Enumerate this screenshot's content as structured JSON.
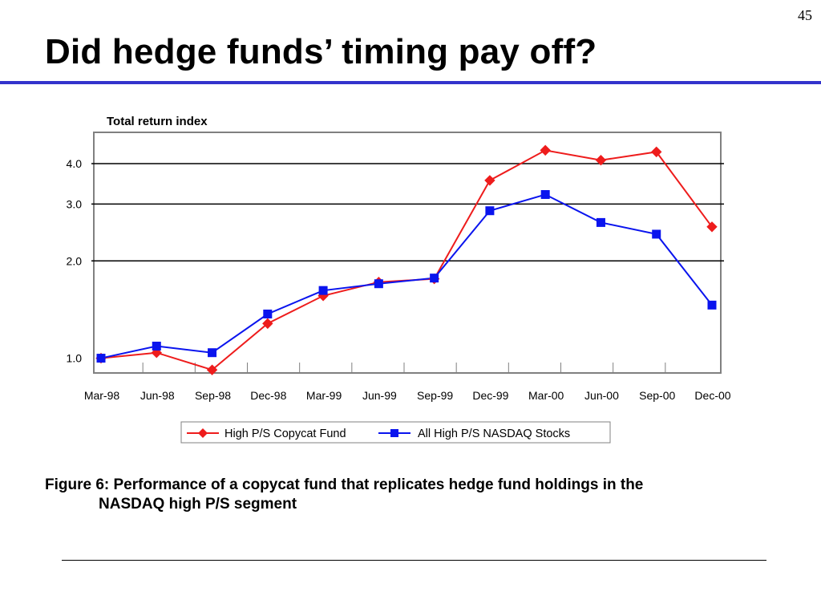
{
  "slide": {
    "page_number": "45",
    "title": "Did hedge funds’ timing pay off?",
    "caption_line1": "Figure 6: Performance of a copycat fund that replicates hedge fund holdings in the",
    "caption_line2": "NASDAQ high P/S segment",
    "title_rule_color": "#3333cc"
  },
  "chart_data": {
    "type": "line",
    "title": "",
    "ylabel": "Total return index",
    "xlabel": "",
    "y_scale": "log",
    "ylim": [
      0.9,
      5.0
    ],
    "yticks": [
      1.0,
      2.0,
      3.0,
      4.0
    ],
    "ytick_labels": [
      "1.0",
      "2.0",
      "3.0",
      "4.0"
    ],
    "gridlines_at": [
      2.0,
      3.0,
      4.0
    ],
    "legend_position": "bottom",
    "categories": [
      "Mar-98",
      "Jun-98",
      "Sep-98",
      "Dec-98",
      "Mar-99",
      "Jun-99",
      "Sep-99",
      "Dec-99",
      "Mar-00",
      "Jun-00",
      "Sep-00",
      "Dec-00"
    ],
    "series": [
      {
        "name": "High P/S Copycat Fund",
        "color": "#ee1c1c",
        "marker": "diamond",
        "values": [
          1.0,
          1.04,
          0.92,
          1.28,
          1.56,
          1.72,
          1.76,
          3.55,
          4.4,
          4.1,
          4.35,
          2.55
        ]
      },
      {
        "name": "All High P/S NASDAQ Stocks",
        "color": "#0a14ee",
        "marker": "square",
        "values": [
          1.0,
          1.09,
          1.04,
          1.37,
          1.62,
          1.7,
          1.77,
          2.86,
          3.21,
          2.63,
          2.42,
          1.46
        ]
      }
    ]
  }
}
